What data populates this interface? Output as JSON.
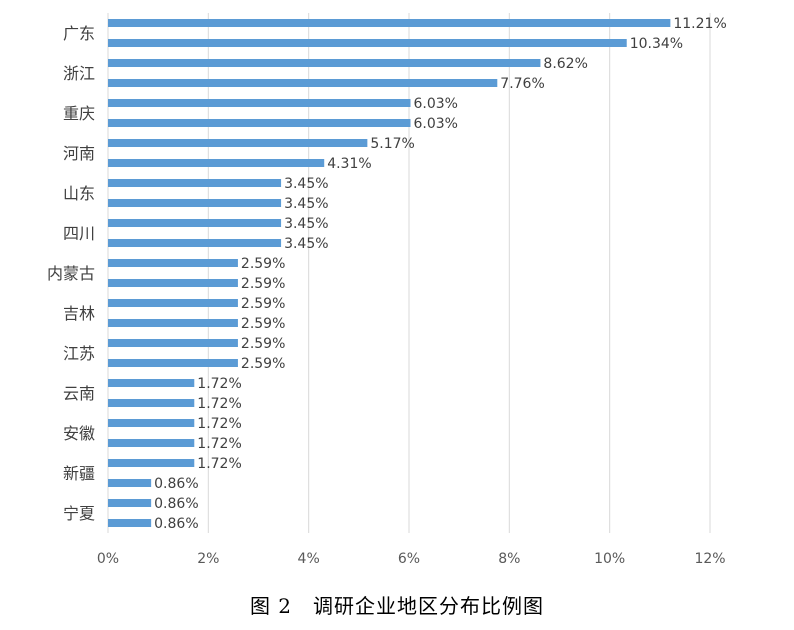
{
  "caption": "图 2　调研企业地区分布比例图",
  "chart_data": {
    "type": "bar",
    "orientation": "horizontal",
    "categories": [
      "",
      "广东",
      "",
      "浙江",
      "",
      "重庆",
      "",
      "河南",
      "",
      "山东",
      "",
      "四川",
      "",
      "内蒙古",
      "",
      "吉林",
      "",
      "江苏",
      "",
      "云南",
      "",
      "安徽",
      "",
      "新疆",
      "",
      "宁夏"
    ],
    "values": [
      11.21,
      10.34,
      8.62,
      7.76,
      6.03,
      6.03,
      5.17,
      4.31,
      3.45,
      3.45,
      3.45,
      3.45,
      2.59,
      2.59,
      2.59,
      2.59,
      2.59,
      2.59,
      1.72,
      1.72,
      1.72,
      1.72,
      1.72,
      0.86,
      0.86,
      0.86
    ],
    "data_labels": [
      "11.21%",
      "10.34%",
      "8.62%",
      "7.76%",
      "6.03%",
      "6.03%",
      "5.17%",
      "4.31%",
      "3.45%",
      "3.45%",
      "3.45%",
      "3.45%",
      "2.59%",
      "2.59%",
      "2.59%",
      "2.59%",
      "2.59%",
      "2.59%",
      "1.72%",
      "1.72%",
      "1.72%",
      "1.72%",
      "1.72%",
      "0.86%",
      "0.86%",
      "0.86%"
    ],
    "xlim": [
      0,
      12
    ],
    "xticks": [
      0,
      2,
      4,
      6,
      8,
      10,
      12
    ],
    "xtick_labels": [
      "0%",
      "2%",
      "4%",
      "6%",
      "8%",
      "10%",
      "12%"
    ],
    "bar_color": "#5B9BD5",
    "grid_color": "#D9D9D9",
    "grid": "vertical",
    "legend": "none"
  }
}
